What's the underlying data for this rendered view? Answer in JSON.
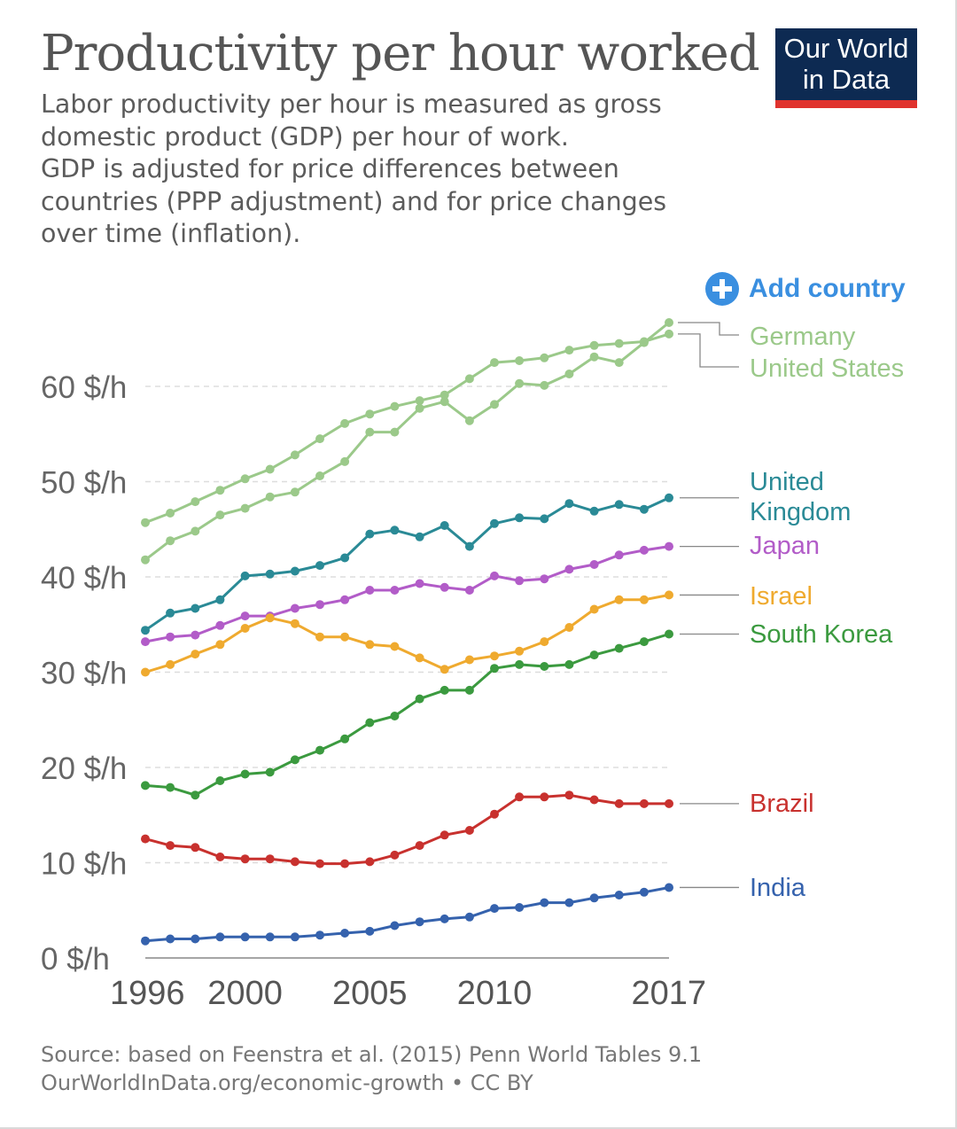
{
  "header": {
    "title": "Productivity per hour worked",
    "subtitle": "Labor productivity per hour is measured as gross\ndomestic product (GDP) per hour of work.\nGDP is adjusted for price differences between\ncountries (PPP adjustment) and for price changes\nover time (inflation).",
    "logo_text": "Our World\nin Data"
  },
  "controls": {
    "add_country_label": "Add country",
    "add_country_icon": "plus-circle-icon",
    "accent_color": "#3a8fe0"
  },
  "footer": {
    "source": "Source: based on Feenstra et al. (2015) Penn World Tables 9.1",
    "link_line": "OurWorldInData.org/economic-growth • CC BY"
  },
  "chart_data": {
    "type": "line",
    "x": [
      1996,
      1997,
      1998,
      1999,
      2000,
      2001,
      2002,
      2003,
      2004,
      2005,
      2006,
      2007,
      2008,
      2009,
      2010,
      2011,
      2012,
      2013,
      2014,
      2015,
      2016,
      2017
    ],
    "xticks": [
      "1996",
      "2000",
      "2005",
      "2010",
      "2017"
    ],
    "yticks": [
      "0 $/h",
      "10 $/h",
      "20 $/h",
      "30 $/h",
      "40 $/h",
      "50 $/h",
      "60 $/h"
    ],
    "ytick_values": [
      0,
      10,
      20,
      30,
      40,
      50,
      60
    ],
    "ylim": [
      0,
      67
    ],
    "xlim": [
      1996,
      2017
    ],
    "grid": "horizontal dashed",
    "series": [
      {
        "name": "Germany",
        "label": "Germany",
        "color": "#9bc98a",
        "values": [
          41.8,
          43.8,
          44.8,
          46.5,
          47.2,
          48.4,
          48.9,
          50.6,
          52.1,
          55.2,
          55.2,
          57.7,
          58.4,
          56.4,
          58.1,
          60.3,
          60.1,
          61.3,
          63.1,
          62.5,
          64.6,
          66.7
        ]
      },
      {
        "name": "United States",
        "label": "United States",
        "color": "#9bc98a",
        "values": [
          45.7,
          46.7,
          47.9,
          49.1,
          50.3,
          51.3,
          52.8,
          54.5,
          56.1,
          57.1,
          57.9,
          58.5,
          59.1,
          60.8,
          62.5,
          62.7,
          63.0,
          63.8,
          64.3,
          64.5,
          64.7,
          65.5
        ]
      },
      {
        "name": "United Kingdom",
        "label": "United\nKingdom",
        "color": "#2a8a96",
        "values": [
          34.4,
          36.2,
          36.7,
          37.6,
          40.1,
          40.3,
          40.6,
          41.2,
          42.0,
          44.5,
          44.9,
          44.2,
          45.4,
          43.2,
          45.6,
          46.2,
          46.1,
          47.7,
          46.9,
          47.6,
          47.1,
          48.3
        ]
      },
      {
        "name": "Japan",
        "label": "Japan",
        "color": "#b25cc8",
        "values": [
          33.2,
          33.7,
          33.9,
          34.9,
          35.9,
          35.9,
          36.7,
          37.1,
          37.6,
          38.6,
          38.6,
          39.3,
          38.9,
          38.6,
          40.1,
          39.6,
          39.8,
          40.8,
          41.3,
          42.3,
          42.8,
          43.2
        ]
      },
      {
        "name": "Israel",
        "label": "Israel",
        "color": "#efaa2f",
        "values": [
          30.0,
          30.8,
          31.9,
          32.9,
          34.6,
          35.7,
          35.1,
          33.7,
          33.7,
          32.9,
          32.7,
          31.5,
          30.3,
          31.3,
          31.7,
          32.2,
          33.2,
          34.7,
          36.6,
          37.6,
          37.6,
          38.1
        ]
      },
      {
        "name": "South Korea",
        "label": "South Korea",
        "color": "#3b9a3f",
        "values": [
          18.1,
          17.9,
          17.1,
          18.6,
          19.3,
          19.5,
          20.8,
          21.8,
          23.0,
          24.7,
          25.4,
          27.2,
          28.1,
          28.1,
          30.4,
          30.8,
          30.6,
          30.8,
          31.8,
          32.5,
          33.2,
          34.0
        ]
      },
      {
        "name": "Brazil",
        "label": "Brazil",
        "color": "#c8312e",
        "values": [
          12.5,
          11.8,
          11.6,
          10.6,
          10.4,
          10.4,
          10.1,
          9.9,
          9.9,
          10.1,
          10.8,
          11.8,
          12.9,
          13.4,
          15.1,
          16.9,
          16.9,
          17.1,
          16.6,
          16.2,
          16.2,
          16.2
        ]
      },
      {
        "name": "India",
        "label": "India",
        "color": "#3562ad",
        "values": [
          1.8,
          2.0,
          2.0,
          2.2,
          2.2,
          2.2,
          2.2,
          2.4,
          2.6,
          2.8,
          3.4,
          3.8,
          4.1,
          4.3,
          5.2,
          5.3,
          5.8,
          5.8,
          6.3,
          6.6,
          6.9,
          7.4
        ]
      }
    ]
  }
}
